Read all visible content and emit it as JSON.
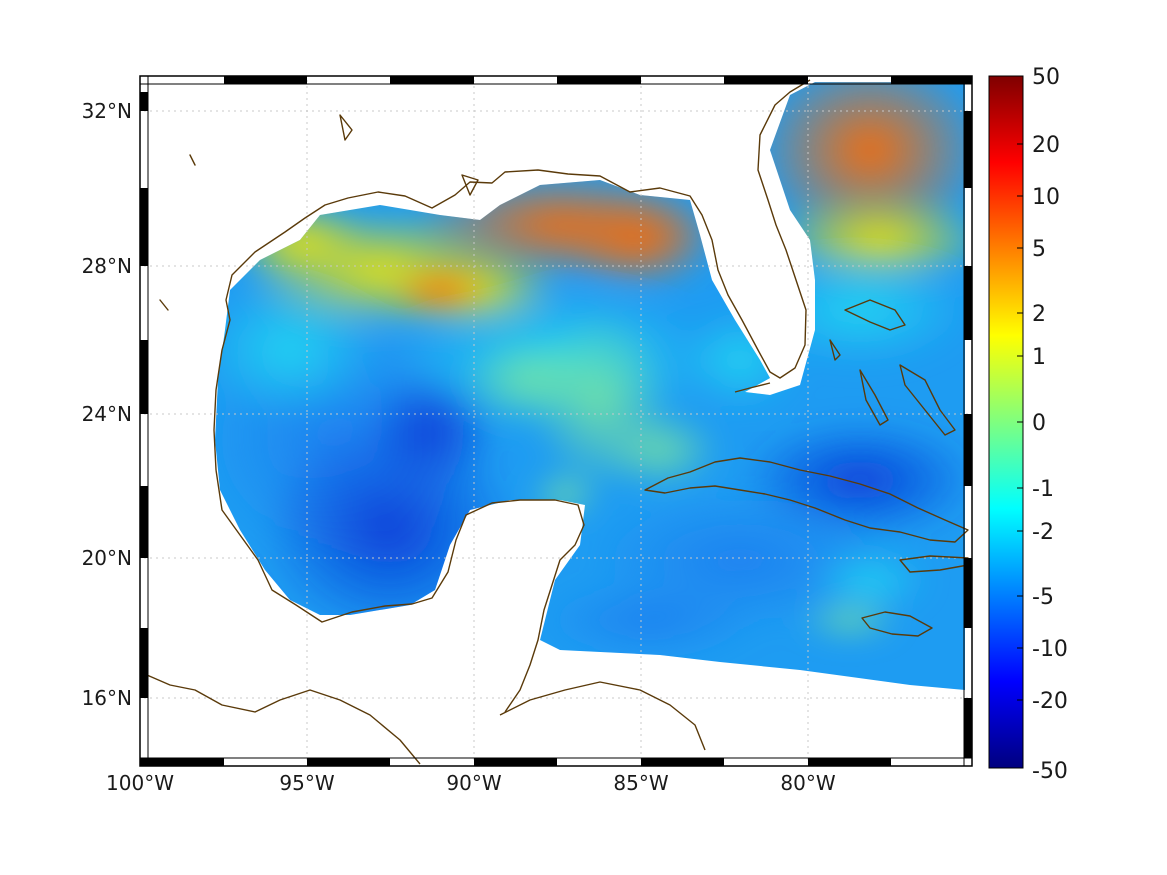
{
  "map": {
    "projection": "mercator",
    "lon_range": [
      -100,
      -75
    ],
    "lat_range": [
      15,
      33
    ],
    "graticule": "dotted",
    "coastline_color": "#5a3a0a",
    "land_color": "#ffffff",
    "lon_ticks": [
      {
        "value": -100,
        "label": "100°W"
      },
      {
        "value": -95,
        "label": "95°W"
      },
      {
        "value": -90,
        "label": "90°W"
      },
      {
        "value": -85,
        "label": "85°W"
      },
      {
        "value": -80,
        "label": "80°W"
      }
    ],
    "lat_ticks": [
      {
        "value": 32,
        "label": "32°N"
      },
      {
        "value": 28,
        "label": "28°N"
      },
      {
        "value": 24,
        "label": "24°N"
      },
      {
        "value": 20,
        "label": "20°N"
      },
      {
        "value": 16,
        "label": "16°N"
      }
    ]
  },
  "colorbar": {
    "scale": "symmetric-log",
    "colormap": "jet",
    "labels": [
      "50",
      "20",
      "10",
      "5",
      "2",
      "1",
      "0",
      "-1",
      "-2",
      "-5",
      "-10",
      "-20",
      "-50"
    ]
  }
}
